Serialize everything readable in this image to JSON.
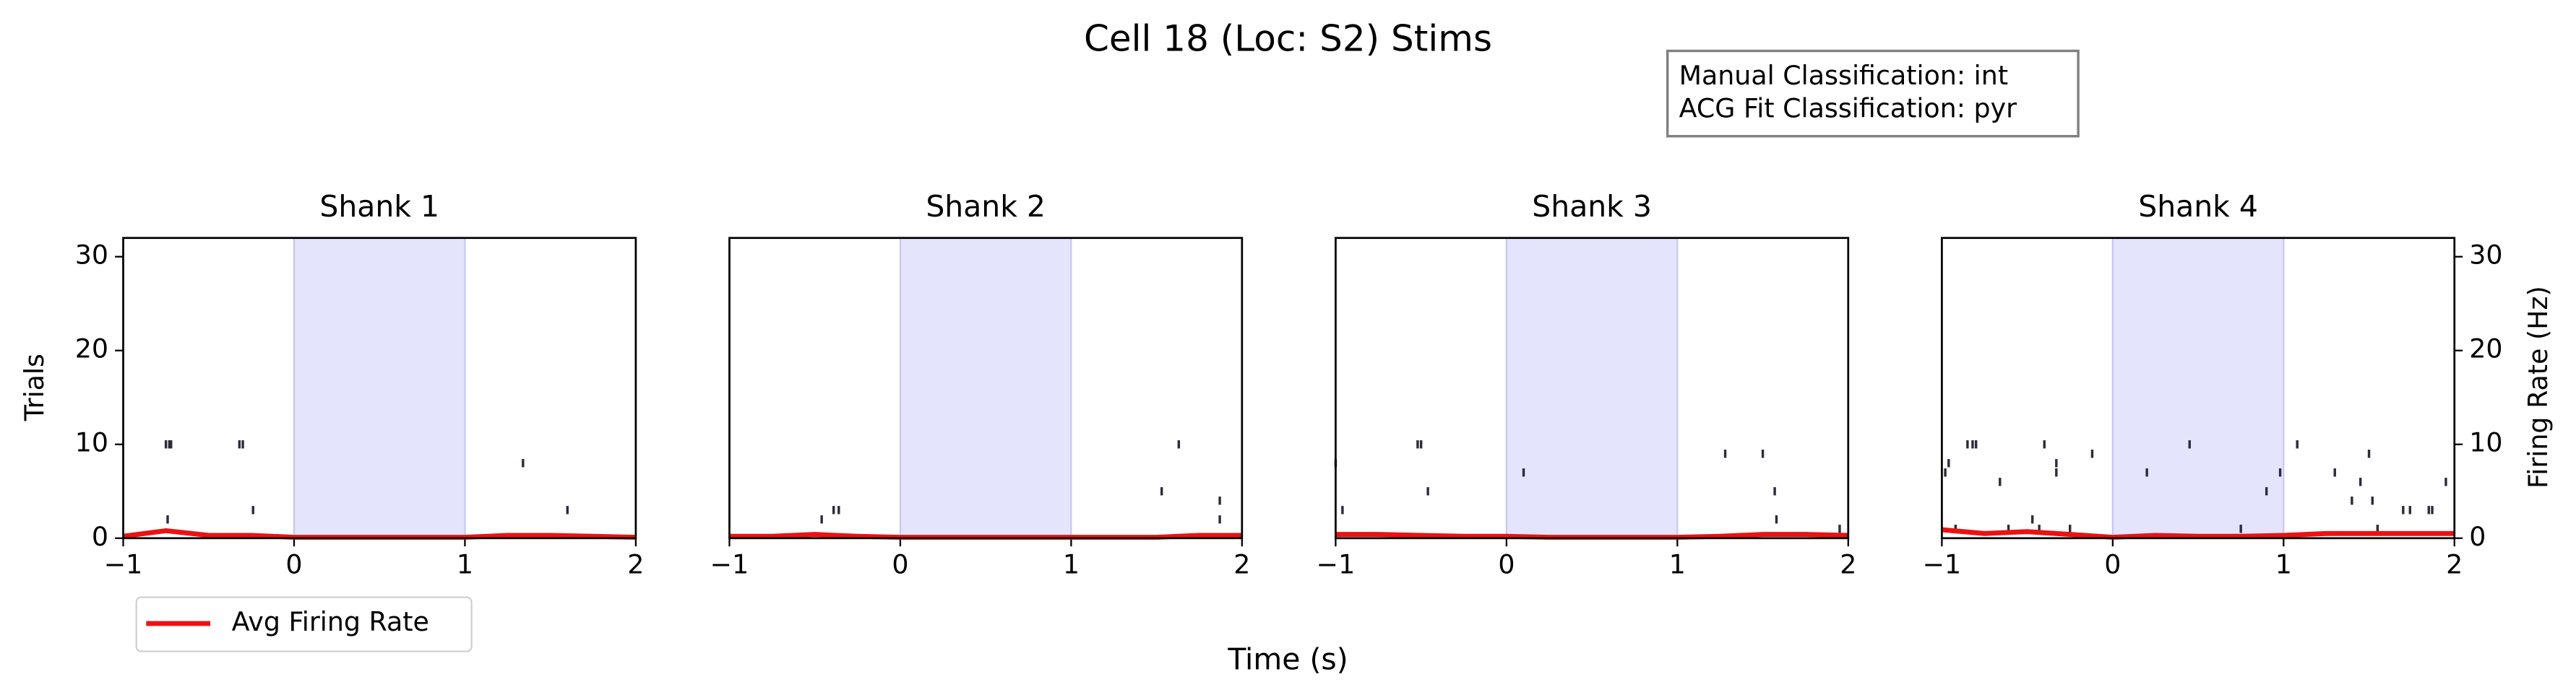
{
  "title": "Cell 18 (Loc: S2) Stims",
  "annotation": [
    "Manual Classification: int",
    "ACG Fit Classification: pyr"
  ],
  "xlabel": "Time (s)",
  "ylabel": "Trials",
  "y2label": "Firing Rate (Hz)",
  "chart_data": [
    {
      "type": "raster",
      "title": "Shank 1",
      "xlim": [
        -1,
        2
      ],
      "xticks": [
        {
          "value": -1,
          "label": "−1"
        },
        0,
        1,
        2
      ],
      "ylim": [
        0,
        32
      ],
      "yticks": [
        0,
        10,
        20,
        30
      ],
      "y2lim": [
        0,
        32
      ],
      "shade": [
        0,
        1
      ],
      "shade_color": "#e4e4fd",
      "spike_color": "#2b2b3b",
      "spikes": {
        "x": [
          -0.75,
          -0.73,
          -0.72,
          -0.74,
          -0.32,
          -0.3,
          -0.24,
          1.34,
          1.6
        ],
        "y": [
          10,
          10,
          10,
          2,
          10,
          10,
          3,
          8,
          3
        ]
      },
      "series": [
        {
          "name": "Avg Firing Rate",
          "color": "#ee1111",
          "axis": "y2",
          "x": [
            -1,
            -0.75,
            -0.5,
            -0.25,
            0,
            0.25,
            0.5,
            0.75,
            1,
            1.25,
            1.5,
            1.75,
            2
          ],
          "values": [
            0.2,
            0.8,
            0.3,
            0.3,
            0.1,
            0.1,
            0.1,
            0.1,
            0.1,
            0.3,
            0.3,
            0.2,
            0.1
          ]
        }
      ]
    },
    {
      "type": "raster",
      "title": "Shank 2",
      "xlim": [
        -1,
        2
      ],
      "xticks": [
        {
          "value": -1,
          "label": "−1"
        },
        0,
        1,
        2
      ],
      "ylim": [
        0,
        32
      ],
      "y2lim": [
        0,
        32
      ],
      "shade": [
        0,
        1
      ],
      "shade_color": "#e4e4fd",
      "spike_color": "#2b2b3b",
      "spikes": {
        "x": [
          -0.46,
          -0.39,
          -0.36,
          1.53,
          1.63,
          1.87,
          1.87
        ],
        "y": [
          2,
          3,
          3,
          5,
          10,
          4,
          2
        ]
      },
      "series": [
        {
          "color": "#ee1111",
          "axis": "y2",
          "x": [
            -1,
            -0.75,
            -0.5,
            -0.25,
            0,
            0.25,
            0.5,
            0.75,
            1,
            1.25,
            1.5,
            1.75,
            2
          ],
          "values": [
            0.2,
            0.2,
            0.4,
            0.2,
            0.1,
            0.1,
            0.1,
            0.1,
            0.1,
            0.1,
            0.1,
            0.3,
            0.3
          ]
        }
      ]
    },
    {
      "type": "raster",
      "title": "Shank 3",
      "xlim": [
        -1,
        2
      ],
      "xticks": [
        {
          "value": -1,
          "label": "−1"
        },
        0,
        1,
        2
      ],
      "ylim": [
        0,
        32
      ],
      "y2lim": [
        0,
        32
      ],
      "shade": [
        0,
        1
      ],
      "shade_color": "#e4e4fd",
      "spike_color": "#2b2b3b",
      "spikes": {
        "x": [
          -1.0,
          -0.96,
          -0.52,
          -0.5,
          -0.46,
          0.1,
          1.28,
          1.5,
          1.57,
          1.58,
          1.95
        ],
        "y": [
          8,
          3,
          10,
          10,
          5,
          7,
          9,
          9,
          5,
          2,
          1
        ]
      },
      "series": [
        {
          "color": "#ee1111",
          "axis": "y2",
          "x": [
            -1,
            -0.75,
            -0.5,
            -0.25,
            0,
            0.25,
            0.5,
            0.75,
            1,
            1.25,
            1.5,
            1.75,
            2
          ],
          "values": [
            0.4,
            0.4,
            0.3,
            0.2,
            0.2,
            0.1,
            0.1,
            0.1,
            0.1,
            0.2,
            0.4,
            0.4,
            0.3
          ]
        }
      ]
    },
    {
      "type": "raster",
      "title": "Shank 4",
      "xlim": [
        -1,
        2
      ],
      "xticks": [
        {
          "value": -1,
          "label": "−1"
        },
        0,
        1,
        2
      ],
      "ylim": [
        0,
        32
      ],
      "y2lim": [
        0,
        32
      ],
      "y2ticks": [
        0,
        10,
        20,
        30
      ],
      "shade": [
        0,
        1
      ],
      "shade_color": "#e4e4fd",
      "spike_color": "#2b2b3b",
      "spikes": {
        "x": [
          -0.98,
          -0.96,
          -0.92,
          -0.85,
          -0.82,
          -0.8,
          -0.66,
          -0.61,
          -0.47,
          -0.43,
          -0.4,
          -0.33,
          -0.33,
          -0.25,
          -0.12,
          0.2,
          0.45,
          0.75,
          0.9,
          0.98,
          1.08,
          1.3,
          1.4,
          1.45,
          1.5,
          1.52,
          1.55,
          1.7,
          1.74,
          1.85,
          1.87,
          1.95
        ],
        "y": [
          7,
          8,
          1,
          10,
          10,
          10,
          6,
          1,
          2,
          1,
          10,
          7,
          8,
          1,
          9,
          7,
          10,
          1,
          5,
          7,
          10,
          7,
          4,
          6,
          9,
          4,
          1,
          3,
          3,
          3,
          3,
          6
        ]
      },
      "series": [
        {
          "color": "#ee1111",
          "axis": "y2",
          "x": [
            -1,
            -0.75,
            -0.5,
            -0.25,
            0,
            0.25,
            0.5,
            0.75,
            1,
            1.25,
            1.5,
            1.75,
            2
          ],
          "values": [
            0.9,
            0.5,
            0.7,
            0.4,
            0.1,
            0.3,
            0.2,
            0.2,
            0.3,
            0.5,
            0.5,
            0.5,
            0.5
          ]
        }
      ]
    }
  ]
}
